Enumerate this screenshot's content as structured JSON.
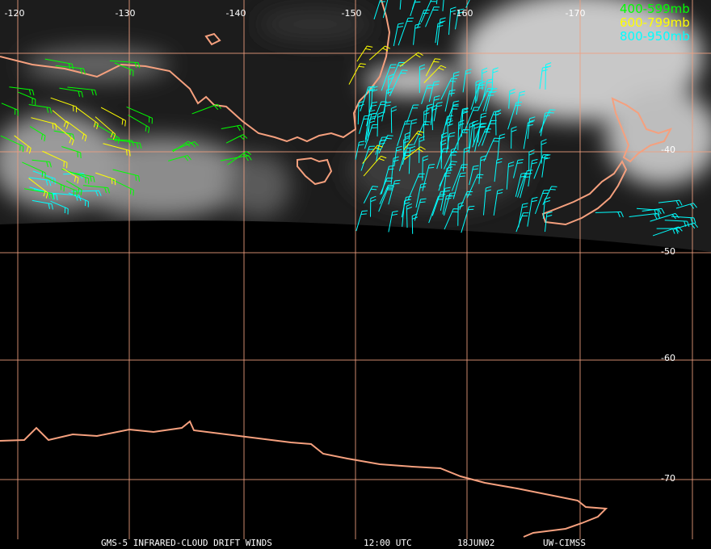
{
  "longitude_labels": [
    "-120",
    "-130",
    "-140",
    "-150",
    "-160",
    "-170"
  ],
  "latitude_labels": [
    "-40",
    "-50",
    "-60",
    "-70"
  ],
  "legend": [
    "400-599mb",
    "600-799mb",
    "800-950mb"
  ],
  "footer": {
    "product": "GMS-5 INFRARED-CLOUD DRIFT WINDS",
    "time": "12:00 UTC",
    "date": "18JUN02",
    "source": "UW-CIMSS"
  }
}
